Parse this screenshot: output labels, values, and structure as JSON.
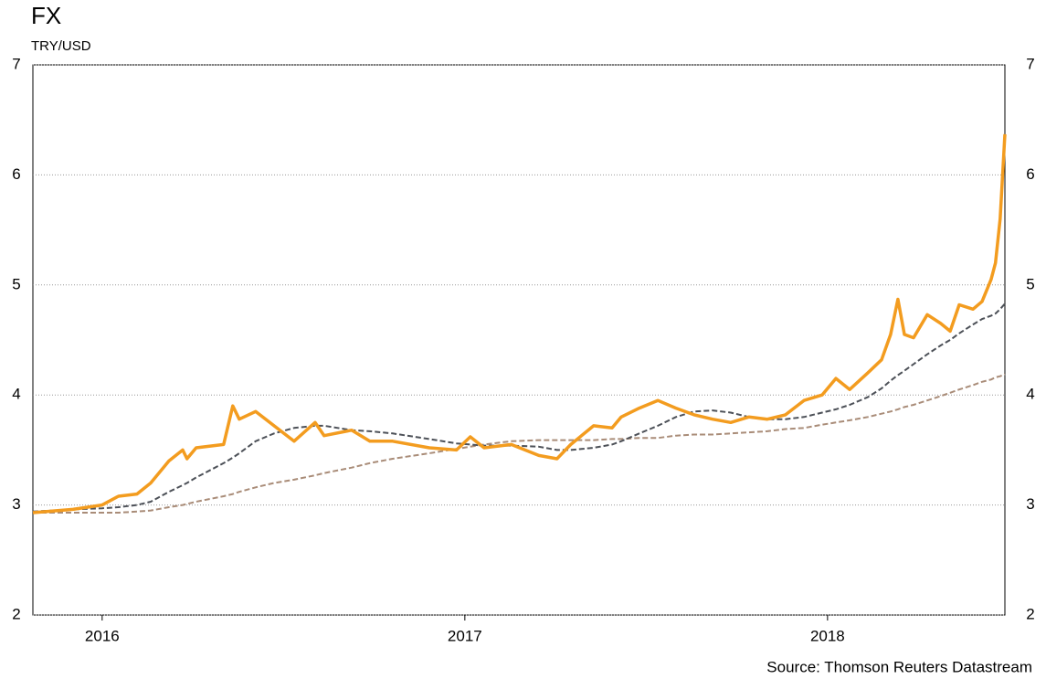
{
  "chart_data": {
    "type": "line",
    "title": "FX",
    "subtitle": "TRY/USD",
    "source": "Source: Thomson Reuters Datastream",
    "x": [
      2015.809,
      2015.919,
      2016.0,
      2016.045,
      2016.096,
      2016.134,
      2016.184,
      2016.222,
      2016.234,
      2016.259,
      2016.335,
      2016.36,
      2016.378,
      2016.423,
      2016.474,
      2016.529,
      2016.587,
      2016.612,
      2016.688,
      2016.738,
      2016.801,
      2016.902,
      2016.977,
      2017.015,
      2017.053,
      2017.128,
      2017.204,
      2017.254,
      2017.292,
      2017.355,
      2017.406,
      2017.431,
      2017.481,
      2017.532,
      2017.582,
      2017.632,
      2017.683,
      2017.733,
      2017.783,
      2017.834,
      2017.884,
      2017.935,
      2017.985,
      2018.023,
      2018.061,
      2018.111,
      2018.149,
      2018.174,
      2018.194,
      2018.212,
      2018.237,
      2018.275,
      2018.312,
      2018.338,
      2018.363,
      2018.401,
      2018.426,
      2018.451,
      2018.463,
      2018.476,
      2018.489
    ],
    "series": [
      {
        "color": "#f39c1f",
        "style": "solid",
        "values": [
          2.93,
          2.96,
          3.0,
          3.08,
          3.1,
          3.2,
          3.4,
          3.5,
          3.42,
          3.52,
          3.55,
          3.9,
          3.78,
          3.85,
          3.72,
          3.58,
          3.75,
          3.63,
          3.68,
          3.58,
          3.58,
          3.52,
          3.5,
          3.62,
          3.52,
          3.55,
          3.45,
          3.42,
          3.55,
          3.72,
          3.7,
          3.8,
          3.88,
          3.95,
          3.88,
          3.82,
          3.78,
          3.75,
          3.8,
          3.78,
          3.82,
          3.95,
          4.0,
          4.15,
          4.05,
          4.2,
          4.32,
          4.55,
          4.87,
          4.55,
          4.52,
          4.73,
          4.65,
          4.58,
          4.82,
          4.78,
          4.85,
          5.05,
          5.2,
          5.6,
          6.37
        ]
      },
      {
        "color": "#4d5158",
        "style": "dashed",
        "values": [
          2.94,
          2.96,
          2.97,
          2.98,
          3.0,
          3.03,
          3.12,
          3.18,
          3.2,
          3.25,
          3.38,
          3.43,
          3.47,
          3.58,
          3.65,
          3.7,
          3.72,
          3.72,
          3.68,
          3.67,
          3.65,
          3.6,
          3.56,
          3.55,
          3.54,
          3.54,
          3.53,
          3.5,
          3.5,
          3.52,
          3.55,
          3.58,
          3.65,
          3.72,
          3.8,
          3.85,
          3.86,
          3.84,
          3.8,
          3.78,
          3.78,
          3.8,
          3.84,
          3.87,
          3.91,
          3.98,
          4.06,
          4.13,
          4.18,
          4.22,
          4.28,
          4.37,
          4.45,
          4.5,
          4.56,
          4.64,
          4.69,
          4.72,
          4.74,
          4.78,
          4.83
        ]
      },
      {
        "color": "#a98c78",
        "style": "dashed",
        "values": [
          2.93,
          2.93,
          2.93,
          2.93,
          2.94,
          2.95,
          2.98,
          3.0,
          3.01,
          3.03,
          3.08,
          3.1,
          3.12,
          3.16,
          3.2,
          3.23,
          3.27,
          3.29,
          3.34,
          3.38,
          3.42,
          3.47,
          3.51,
          3.53,
          3.55,
          3.58,
          3.59,
          3.59,
          3.59,
          3.59,
          3.6,
          3.6,
          3.61,
          3.61,
          3.63,
          3.64,
          3.64,
          3.65,
          3.66,
          3.67,
          3.69,
          3.7,
          3.73,
          3.75,
          3.77,
          3.8,
          3.83,
          3.85,
          3.87,
          3.89,
          3.91,
          3.95,
          3.99,
          4.02,
          4.05,
          4.09,
          4.12,
          4.14,
          4.16,
          4.17,
          4.19
        ]
      }
    ],
    "xlim": [
      2015.809,
      2018.489
    ],
    "xticks": [
      2016,
      2017,
      2018
    ],
    "ylim": [
      2,
      7
    ],
    "yticks": [
      2,
      3,
      4,
      5,
      6,
      7
    ],
    "grid": true
  }
}
